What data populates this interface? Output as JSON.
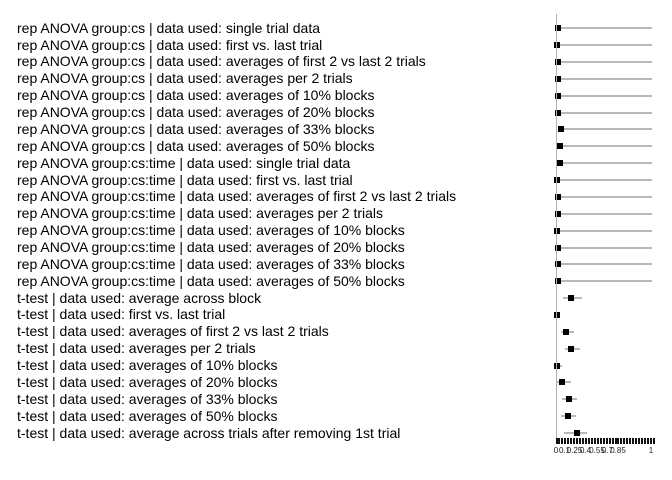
{
  "chart_data": {
    "type": "scatter",
    "variant": "forest-plot-dot-with-interval",
    "title": "",
    "xlabel": "",
    "ylabel": "",
    "xlim": [
      0,
      1
    ],
    "grid": false,
    "legend": null,
    "marker_color": "#000000",
    "interval_color": "#b9b9b9",
    "axis_color": "#b0b0b0",
    "tick_color": "#111111",
    "x_tick_labels": [
      "0",
      "0.1",
      "0.25",
      "0.4",
      "0.55",
      "0.7",
      "0.85",
      "1"
    ],
    "rows": [
      {
        "label": "rep ANOVA group:cs | data used: single trial data",
        "value": 0.02,
        "lo": 0.02,
        "hi": 1.0
      },
      {
        "label": "rep ANOVA group:cs | data used: first vs. last trial",
        "value": 0.01,
        "lo": 0.01,
        "hi": 0.99
      },
      {
        "label": "rep ANOVA group:cs | data used: averages of first 2 vs last 2 trials",
        "value": 0.012,
        "lo": 0.012,
        "hi": 1.0
      },
      {
        "label": "rep ANOVA group:cs | data used: averages per 2 trials",
        "value": 0.02,
        "lo": 0.02,
        "hi": 1.0
      },
      {
        "label": "rep ANOVA group:cs | data used: averages of 10% blocks",
        "value": 0.02,
        "lo": 0.02,
        "hi": 1.0
      },
      {
        "label": "rep ANOVA group:cs | data used: averages of 20% blocks",
        "value": 0.012,
        "lo": 0.012,
        "hi": 1.0
      },
      {
        "label": "rep ANOVA group:cs | data used: averages of 33% blocks",
        "value": 0.042,
        "lo": 0.042,
        "hi": 1.0
      },
      {
        "label": "rep ANOVA group:cs | data used: averages of 50% blocks",
        "value": 0.036,
        "lo": 0.036,
        "hi": 1.0
      },
      {
        "label": "rep ANOVA group:cs:time | data used: single trial data",
        "value": 0.034,
        "lo": 0.034,
        "hi": 1.0
      },
      {
        "label": "rep ANOVA group:cs:time | data used: first vs. last trial",
        "value": 0.002,
        "lo": 0.002,
        "hi": 1.0
      },
      {
        "label": "rep ANOVA group:cs:time | data used: averages of first 2 vs last 2 trials",
        "value": 0.012,
        "lo": 0.012,
        "hi": 1.0
      },
      {
        "label": "rep ANOVA group:cs:time | data used: averages per 2 trials",
        "value": 0.012,
        "lo": 0.012,
        "hi": 1.0
      },
      {
        "label": "rep ANOVA group:cs:time | data used: averages of 10% blocks",
        "value": 0.01,
        "lo": 0.01,
        "hi": 1.0
      },
      {
        "label": "rep ANOVA group:cs:time | data used: averages of 20% blocks",
        "value": 0.012,
        "lo": 0.012,
        "hi": 1.0
      },
      {
        "label": "rep ANOVA group:cs:time | data used: averages of 33% blocks",
        "value": 0.012,
        "lo": 0.012,
        "hi": 1.0
      },
      {
        "label": "rep ANOVA group:cs:time | data used: averages of 50% blocks",
        "value": 0.012,
        "lo": 0.012,
        "hi": 1.0
      },
      {
        "label": "t-test | data used: average across block",
        "value": 0.151,
        "lo": 0.068,
        "hi": 0.266
      },
      {
        "label": "t-test | data used: first vs. last trial",
        "value": 0.004,
        "lo": 0.0,
        "hi": 0.03
      },
      {
        "label": "t-test | data used: averages of first 2 vs last 2 trials",
        "value": 0.099,
        "lo": 0.047,
        "hi": 0.182
      },
      {
        "label": "t-test | data used: averages per 2 trials",
        "value": 0.151,
        "lo": 0.089,
        "hi": 0.245
      },
      {
        "label": "t-test | data used: averages of 10% blocks",
        "value": 0.008,
        "lo": 0.0,
        "hi": 0.057
      },
      {
        "label": "t-test | data used: averages of 20% blocks",
        "value": 0.057,
        "lo": 0.005,
        "hi": 0.151
      },
      {
        "label": "t-test | data used: averages of 33% blocks",
        "value": 0.13,
        "lo": 0.057,
        "hi": 0.214
      },
      {
        "label": "t-test | data used: averages of 50% blocks",
        "value": 0.122,
        "lo": 0.047,
        "hi": 0.203
      },
      {
        "label": "t-test | data used: average across trials after removing 1st trial",
        "value": 0.214,
        "lo": 0.078,
        "hi": 0.318
      }
    ]
  }
}
